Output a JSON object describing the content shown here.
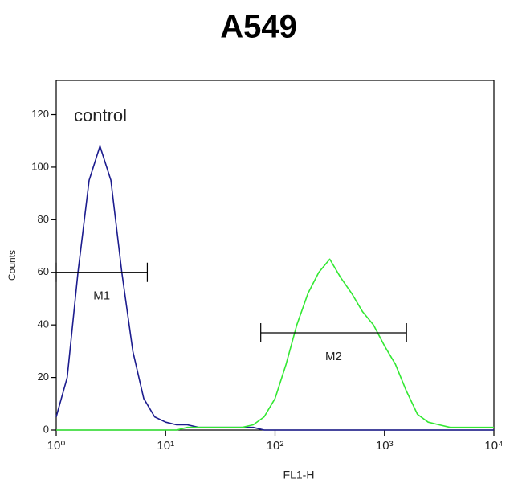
{
  "chart_data": {
    "type": "line",
    "title": "A549",
    "x_label": "FL1-H",
    "y_label": "Counts",
    "annotation": "control",
    "log_x": true,
    "xlim": [
      1,
      10000
    ],
    "ylim": [
      0,
      133
    ],
    "xticks": [
      {
        "value": 1,
        "label": "10⁰"
      },
      {
        "value": 10,
        "label": "10¹"
      },
      {
        "value": 100,
        "label": "10²"
      },
      {
        "value": 1000,
        "label": "10³"
      },
      {
        "value": 10000,
        "label": "10⁴"
      }
    ],
    "yticks": [
      0,
      20,
      40,
      60,
      80,
      100,
      120
    ],
    "x": [
      1,
      1.26,
      1.58,
      2,
      2.51,
      3.16,
      3.98,
      5.01,
      6.31,
      7.94,
      10,
      12.6,
      15.8,
      20,
      25.1,
      31.6,
      39.8,
      50.1,
      63.1,
      79.4,
      100,
      126,
      158,
      200,
      251,
      316,
      398,
      501,
      631,
      794,
      1000,
      1260,
      1580,
      2000,
      2510,
      3160,
      3980,
      5010,
      6310,
      7940,
      10000
    ],
    "series": [
      {
        "color": "#1c1c8e",
        "values": [
          5,
          20,
          60,
          95,
          108,
          95,
          60,
          30,
          12,
          5,
          3,
          2,
          2,
          1,
          1,
          1,
          1,
          1,
          1,
          0,
          0,
          0,
          0,
          0,
          0,
          0,
          0,
          0,
          0,
          0,
          0,
          0,
          0,
          0,
          0,
          0,
          0,
          0,
          0,
          0,
          0
        ]
      },
      {
        "color": "#33e833",
        "values": [
          0,
          0,
          0,
          0,
          0,
          0,
          0,
          0,
          0,
          0,
          0,
          0,
          1,
          1,
          1,
          1,
          1,
          1,
          2,
          5,
          12,
          25,
          40,
          52,
          60,
          65,
          58,
          52,
          45,
          40,
          32,
          25,
          15,
          6,
          3,
          2,
          1,
          1,
          1,
          1,
          1
        ]
      }
    ],
    "markers": [
      {
        "label": "M1",
        "x": [
          1,
          6.8
        ],
        "y": 60
      },
      {
        "label": "M2",
        "x": [
          74,
          1590
        ],
        "y": 37
      }
    ]
  }
}
